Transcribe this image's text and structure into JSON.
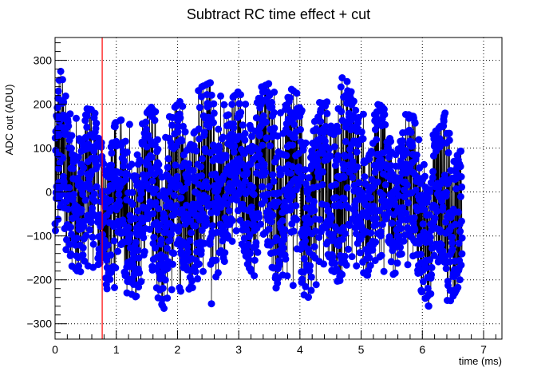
{
  "chart_data": {
    "type": "scatter",
    "title": "Subtract RC time effect + cut",
    "xlabel": "time (ms)",
    "ylabel": "ADC out (ADU)",
    "xlim": [
      0,
      7.3
    ],
    "ylim": [
      -335,
      352
    ],
    "x_ticks": [
      0,
      1,
      2,
      3,
      4,
      5,
      6,
      7
    ],
    "y_ticks": [
      -300,
      -200,
      -100,
      0,
      100,
      200,
      300
    ],
    "x_tick_labels": [
      "0",
      "1",
      "2",
      "3",
      "4",
      "5",
      "6",
      "7"
    ],
    "y_tick_labels": [
      "−300",
      "−200",
      "−100",
      "0",
      "100",
      "200",
      "300"
    ],
    "grid": true,
    "x_range": [
      0,
      6.65
    ],
    "n_points": 2000,
    "envelope": [
      [
        0.0,
        -130,
        130
      ],
      [
        0.08,
        -160,
        280
      ],
      [
        0.3,
        -170,
        195
      ],
      [
        0.5,
        -200,
        190
      ],
      [
        0.7,
        -190,
        185
      ],
      [
        0.78,
        -120,
        140
      ],
      [
        0.85,
        -230,
        130
      ],
      [
        1.0,
        -260,
        160
      ],
      [
        1.2,
        -250,
        170
      ],
      [
        1.4,
        -230,
        160
      ],
      [
        1.6,
        -220,
        200
      ],
      [
        1.8,
        -270,
        170
      ],
      [
        2.0,
        -240,
        200
      ],
      [
        2.2,
        -220,
        230
      ],
      [
        2.4,
        -210,
        240
      ],
      [
        2.55,
        -265,
        250
      ],
      [
        2.6,
        -200,
        265
      ],
      [
        2.8,
        -150,
        200
      ],
      [
        3.0,
        -130,
        230
      ],
      [
        3.2,
        -180,
        250
      ],
      [
        3.4,
        -220,
        240
      ],
      [
        3.6,
        -220,
        255
      ],
      [
        3.8,
        -190,
        240
      ],
      [
        4.0,
        -260,
        220
      ],
      [
        4.2,
        -230,
        210
      ],
      [
        4.4,
        -210,
        200
      ],
      [
        4.7,
        -200,
        290
      ],
      [
        4.9,
        -170,
        200
      ],
      [
        5.1,
        -190,
        195
      ],
      [
        5.3,
        -180,
        200
      ],
      [
        5.5,
        -190,
        170
      ],
      [
        5.7,
        -170,
        180
      ],
      [
        5.9,
        -200,
        170
      ],
      [
        6.1,
        -260,
        150
      ],
      [
        6.3,
        -260,
        150
      ],
      [
        6.45,
        -250,
        230
      ],
      [
        6.65,
        -200,
        120
      ]
    ],
    "series": [
      {
        "color": "#0000ff",
        "marker": "circle",
        "line_color": "#000000"
      }
    ],
    "cut_line": {
      "x": 0.77,
      "color": "#ff0000"
    }
  }
}
